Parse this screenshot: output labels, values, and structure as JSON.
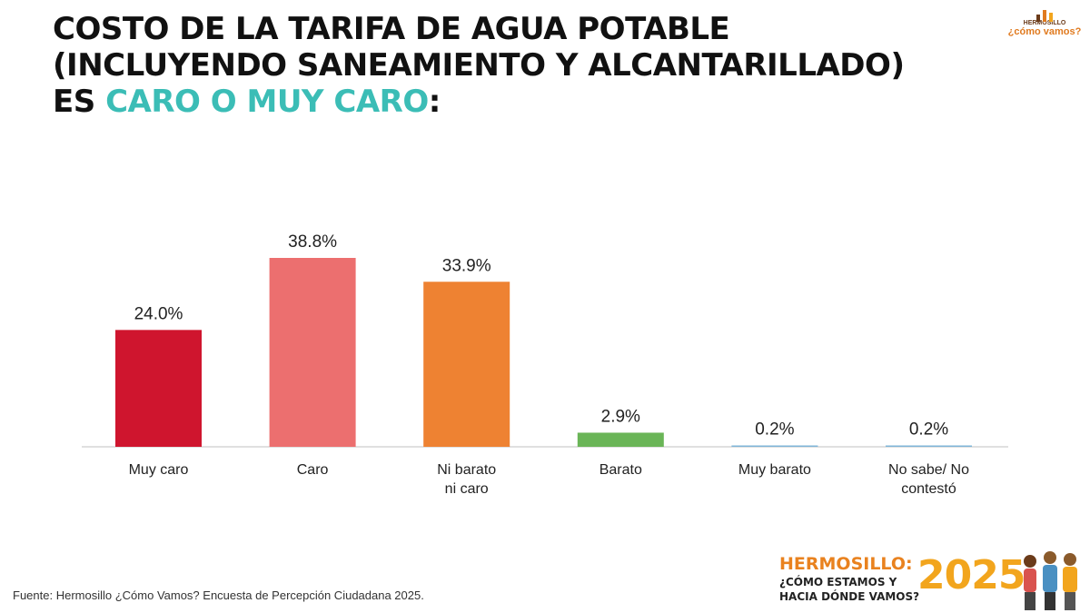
{
  "title": {
    "line1": "COSTO DE LA TARIFA DE AGUA POTABLE",
    "line2": "(INCLUYENDO SANEAMIENTO Y ALCANTARILLADO)",
    "line3_prefix": "ES ",
    "line3_highlight": "CARO O MUY CARO",
    "line3_suffix": ":"
  },
  "logo_top": {
    "line1": "HERMOSILLO",
    "line2": "¿cómo vamos?"
  },
  "banner": {
    "line1": "HERMOSILLO:",
    "line2": "¿CÓMO ESTAMOS Y",
    "line3": "HACIA DÓNDE VAMOS?",
    "year": "2025"
  },
  "source": "Fuente: Hermosillo ¿Cómo Vamos? Encuesta de Percepción Ciudadana 2025.",
  "colors": {
    "title_highlight": "#3bbdb6",
    "brand_orange": "#e9821f"
  },
  "chart_data": {
    "type": "bar",
    "categories": [
      [
        "Muy caro"
      ],
      [
        "Caro"
      ],
      [
        "Ni barato",
        "ni caro"
      ],
      [
        "Barato"
      ],
      [
        "Muy barato"
      ],
      [
        "No sabe/ No",
        "contestó"
      ]
    ],
    "values": [
      24.0,
      38.8,
      33.9,
      2.9,
      0.2,
      0.2
    ],
    "value_labels": [
      "24.0%",
      "38.8%",
      "33.9%",
      "2.9%",
      "0.2%",
      "0.2%"
    ],
    "bar_colors": [
      "#cf152e",
      "#ec6f6f",
      "#ee8232",
      "#6ab557",
      "#7fb5d8",
      "#7fb5d8"
    ],
    "unit": "%",
    "ylim": [
      0,
      40
    ],
    "grid": false,
    "legend": "none"
  }
}
